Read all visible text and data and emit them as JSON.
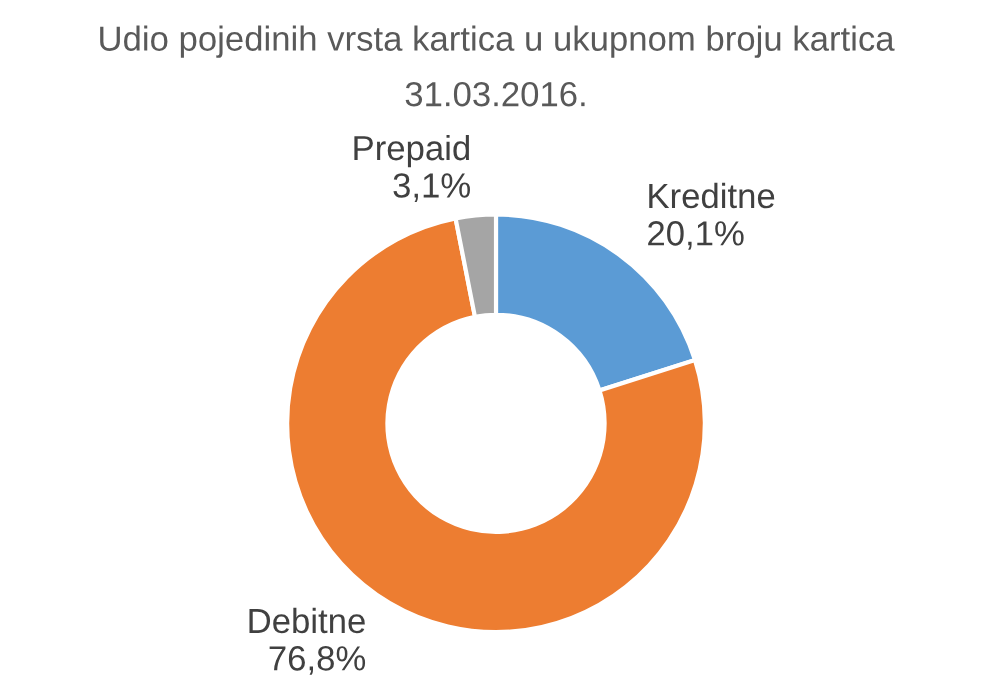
{
  "chart_data": {
    "type": "donut",
    "title": "Udio pojedinih vrsta kartica u ukupnom broju kartica",
    "subtitle": "31.03.2016.",
    "categories": [
      "Kreditne",
      "Debitne",
      "Prepaid"
    ],
    "values": [
      20.1,
      76.8,
      3.1
    ],
    "value_labels": [
      "20,1%",
      "76,8%",
      "3,1%"
    ],
    "colors": [
      "#5b9bd5",
      "#ed7d31",
      "#a5a5a5"
    ],
    "legend": false
  }
}
